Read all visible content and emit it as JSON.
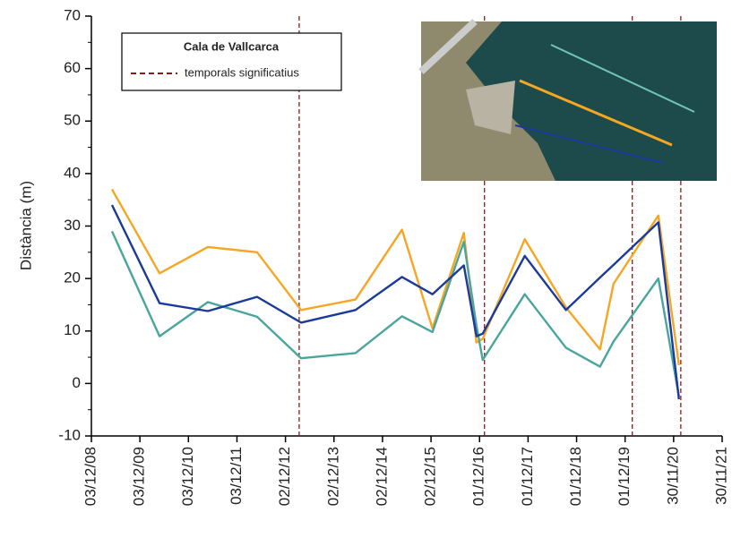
{
  "chart_data": {
    "type": "line",
    "ylabel": "Distància (m)",
    "legend_title": "Cala de Vallcarca",
    "storm_label": "temporals significatius",
    "storm_color": "#8b1a1a",
    "storms": [
      "2013-03-15",
      "2017-01-07",
      "2020-01-24",
      "2021-01-23"
    ],
    "x": [
      "2009-05-07",
      "2010-04-30",
      "2011-04-28",
      "2012-05-03",
      "2013-03-29",
      "2014-05-13",
      "2015-04-28",
      "2015-12-13",
      "2016-08-05",
      "2016-11-08",
      "2016-12-25",
      "2017-11-06",
      "2018-09-12",
      "2019-05-26",
      "2019-09-05",
      "2020-08-07",
      "2021-01-09"
    ],
    "series": [
      {
        "color": "#f5a623",
        "values": [
          37,
          21,
          26,
          25,
          14,
          16,
          29.3,
          10.5,
          28.7,
          7.8,
          8.5,
          27.5,
          14.5,
          6.5,
          19,
          32,
          3.5
        ]
      },
      {
        "color": "#4aa59c",
        "values": [
          29,
          9,
          15.5,
          12.7,
          4.8,
          5.8,
          12.8,
          9.8,
          27,
          11,
          4.5,
          17,
          6.8,
          3.2,
          8,
          20,
          -2.5
        ]
      },
      {
        "color": "#1a3a9c",
        "values": [
          34,
          15.3,
          13.8,
          16.5,
          11.6,
          14,
          20.3,
          17,
          22.5,
          9,
          9.5,
          24.3,
          14,
          20.2,
          22.6,
          30.7,
          -3
        ]
      }
    ],
    "xlim": [
      "2008-12-03",
      "2021-11-30"
    ],
    "xticks": [
      {
        "value": "2008-12-03",
        "label": "03/12/08"
      },
      {
        "value": "2009-12-03",
        "label": "03/12/09"
      },
      {
        "value": "2010-12-03",
        "label": "03/12/10"
      },
      {
        "value": "2011-12-03",
        "label": "03/12/11"
      },
      {
        "value": "2012-12-02",
        "label": "02/12/12"
      },
      {
        "value": "2013-12-02",
        "label": "02/12/13"
      },
      {
        "value": "2014-12-02",
        "label": "02/12/14"
      },
      {
        "value": "2015-12-02",
        "label": "02/12/15"
      },
      {
        "value": "2016-12-01",
        "label": "01/12/16"
      },
      {
        "value": "2017-12-01",
        "label": "01/12/17"
      },
      {
        "value": "2018-12-01",
        "label": "01/12/18"
      },
      {
        "value": "2019-12-01",
        "label": "01/12/19"
      },
      {
        "value": "2020-11-30",
        "label": "30/11/20"
      },
      {
        "value": "2021-11-30",
        "label": "30/11/21"
      }
    ],
    "ylim": [
      -10,
      70
    ],
    "yticks": [
      -10,
      0,
      10,
      20,
      30,
      40,
      50,
      60,
      70
    ]
  }
}
